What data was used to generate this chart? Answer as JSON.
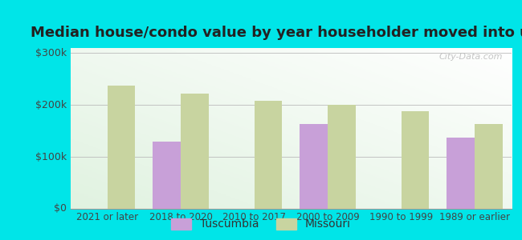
{
  "title": "Median house/condo value by year householder moved into unit",
  "categories": [
    "2021 or later",
    "2018 to 2020",
    "2010 to 2017",
    "2000 to 2009",
    "1990 to 1999",
    "1989 or earlier"
  ],
  "tuscumbia": [
    null,
    130000,
    null,
    163000,
    null,
    138000
  ],
  "missouri": [
    238000,
    222000,
    208000,
    200000,
    188000,
    163000
  ],
  "tuscumbia_color": "#c8a0d8",
  "missouri_color": "#c8d4a0",
  "background_outer": "#00e5e8",
  "background_inner": "#dff2df",
  "yticks": [
    0,
    100000,
    200000,
    300000
  ],
  "ylabels": [
    "$0",
    "$100k",
    "$200k",
    "$300k"
  ],
  "ylim": [
    0,
    310000
  ],
  "bar_width": 0.38,
  "title_fontsize": 13,
  "legend_tuscumbia": "Tuscumbia",
  "legend_missouri": "Missouri"
}
